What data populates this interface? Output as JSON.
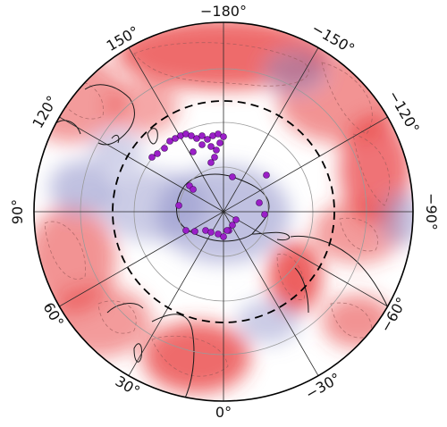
{
  "map": {
    "projection": "polar (south pole)",
    "longitude_labels": [
      {
        "id": "lon-180",
        "text": "−180°"
      },
      {
        "id": "lon-150",
        "text": "150°"
      },
      {
        "id": "lon-neg150",
        "text": "−150°"
      },
      {
        "id": "lon-120",
        "text": "120°"
      },
      {
        "id": "lon-neg120",
        "text": "−120°"
      },
      {
        "id": "lon-90",
        "text": "90°"
      },
      {
        "id": "lon-neg90",
        "text": "−90°"
      },
      {
        "id": "lon-60",
        "text": "60°"
      },
      {
        "id": "lon-neg60",
        "text": "−60°"
      },
      {
        "id": "lon-30",
        "text": "30°"
      },
      {
        "id": "lon-neg30",
        "text": "−30°"
      },
      {
        "id": "lon-0",
        "text": "0°"
      }
    ],
    "colors": {
      "positive": "#e8393a",
      "negative": "#8c8ec8",
      "markers": "#9b1fc8",
      "coast": "#1a1a1a"
    }
  }
}
